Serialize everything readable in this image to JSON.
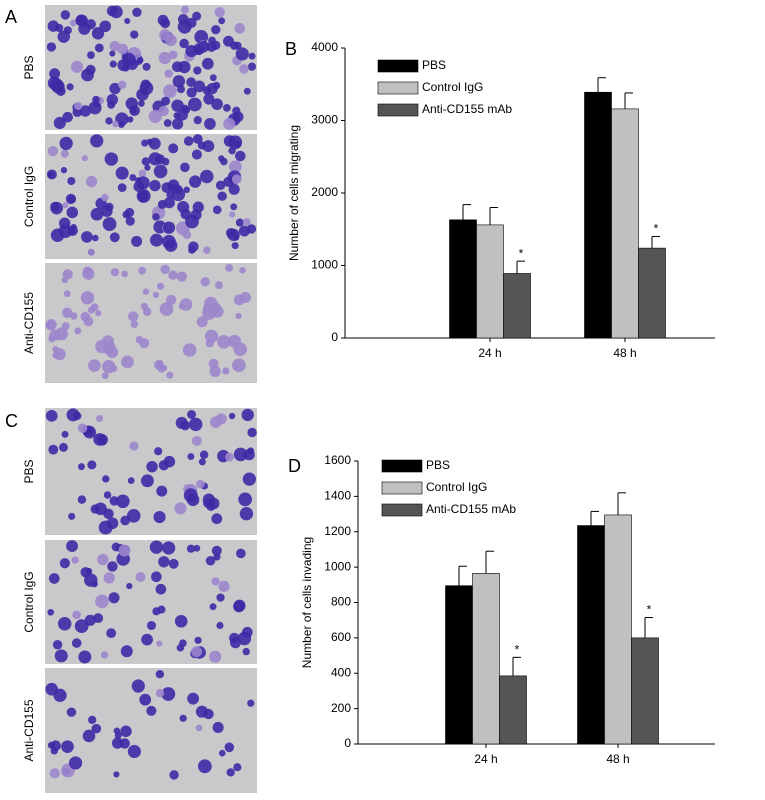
{
  "panels": [
    "A",
    "B",
    "C",
    "D"
  ],
  "image_labels": [
    [
      "PBS",
      "Control IgG",
      "Anti-CD155"
    ],
    [
      "PBS",
      "Control IgG",
      "Anti-CD155"
    ]
  ],
  "chart_data": [
    {
      "type": "bar",
      "y_label": "Number of cells migrating",
      "categories": [
        "24 h",
        "48 h"
      ],
      "series": [
        {
          "name": "PBS",
          "color": "#000000",
          "values": [
            1630,
            3390
          ],
          "error": [
            210,
            200
          ]
        },
        {
          "name": "Control IgG",
          "color": "#c0c0c0",
          "values": [
            1560,
            3160
          ],
          "error": [
            240,
            220
          ]
        },
        {
          "name": "Anti-CD155 mAb",
          "color": "#555555",
          "values": [
            890,
            1240
          ],
          "error": [
            170,
            160
          ]
        }
      ],
      "annotations": [
        {
          "text": "*",
          "series": 2,
          "category": 0
        },
        {
          "text": "*",
          "series": 2,
          "category": 1
        }
      ],
      "ylim": [
        0,
        4000
      ],
      "yticks": [
        0,
        1000,
        2000,
        3000,
        4000
      ],
      "grid": false,
      "legend": "top-left"
    },
    {
      "type": "bar",
      "y_label": "Number of cells invading",
      "categories": [
        "24 h",
        "48 h"
      ],
      "series": [
        {
          "name": "PBS",
          "color": "#000000",
          "values": [
            895,
            1235
          ],
          "error": [
            110,
            80
          ]
        },
        {
          "name": "Control IgG",
          "color": "#c0c0c0",
          "values": [
            965,
            1295
          ],
          "error": [
            125,
            125
          ]
        },
        {
          "name": "Anti-CD155 mAb",
          "color": "#555555",
          "values": [
            385,
            600
          ],
          "error": [
            105,
            115
          ]
        }
      ],
      "annotations": [
        {
          "text": "*",
          "series": 2,
          "category": 0
        },
        {
          "text": "*",
          "series": 2,
          "category": 1
        }
      ],
      "ylim": [
        0,
        1600
      ],
      "yticks": [
        0,
        200,
        400,
        600,
        800,
        1000,
        1200,
        1400,
        1600
      ],
      "grid": false,
      "legend": "top-left"
    }
  ]
}
